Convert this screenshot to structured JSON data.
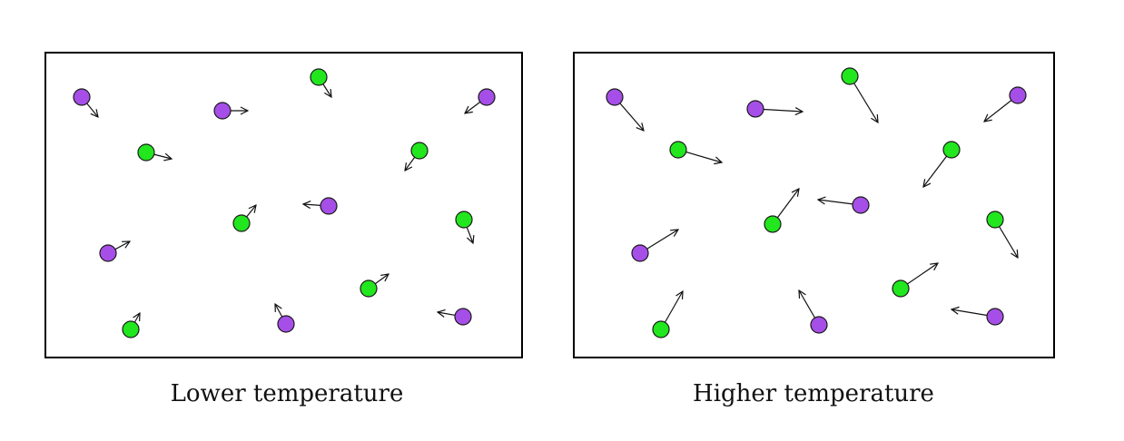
{
  "colors": {
    "particle_a": "#a64ee8",
    "particle_b": "#22e61e",
    "outline": "#1a1a1a",
    "box_border": "#000000"
  },
  "panels": [
    {
      "caption": "Lower temperature",
      "particles": [
        {
          "type": "a",
          "vx": 18,
          "vy": 22
        },
        {
          "type": "a",
          "vx": 28,
          "vy": 0
        },
        {
          "type": "b",
          "vx": 14,
          "vy": 22
        },
        {
          "type": "a",
          "vx": -24,
          "vy": 18
        },
        {
          "type": "b",
          "vx": 28,
          "vy": 7
        },
        {
          "type": "b",
          "vx": -16,
          "vy": 22
        },
        {
          "type": "b",
          "vx": 16,
          "vy": -20
        },
        {
          "type": "a",
          "vx": -28,
          "vy": -2
        },
        {
          "type": "b",
          "vx": 10,
          "vy": 26
        },
        {
          "type": "a",
          "vx": 24,
          "vy": -13
        },
        {
          "type": "b",
          "vx": 22,
          "vy": -16
        },
        {
          "type": "b",
          "vx": 10,
          "vy": -18
        },
        {
          "type": "a",
          "vx": -12,
          "vy": -22
        },
        {
          "type": "a",
          "vx": -28,
          "vy": -5
        }
      ]
    },
    {
      "caption": "Higher temperature",
      "particles": [
        {
          "type": "a",
          "vx": 32,
          "vy": 37
        },
        {
          "type": "a",
          "vx": 52,
          "vy": 3
        },
        {
          "type": "b",
          "vx": 31,
          "vy": 51
        },
        {
          "type": "a",
          "vx": -37,
          "vy": 29
        },
        {
          "type": "b",
          "vx": 48,
          "vy": 14
        },
        {
          "type": "b",
          "vx": -31,
          "vy": 41
        },
        {
          "type": "b",
          "vx": 29,
          "vy": -39
        },
        {
          "type": "a",
          "vx": -47,
          "vy": -6
        },
        {
          "type": "b",
          "vx": 25,
          "vy": 42
        },
        {
          "type": "a",
          "vx": 42,
          "vy": -26
        },
        {
          "type": "b",
          "vx": 41,
          "vy": -28
        },
        {
          "type": "b",
          "vx": 24,
          "vy": -42
        },
        {
          "type": "a",
          "vx": -22,
          "vy": -38
        },
        {
          "type": "a",
          "vx": -48,
          "vy": -8
        }
      ]
    }
  ]
}
